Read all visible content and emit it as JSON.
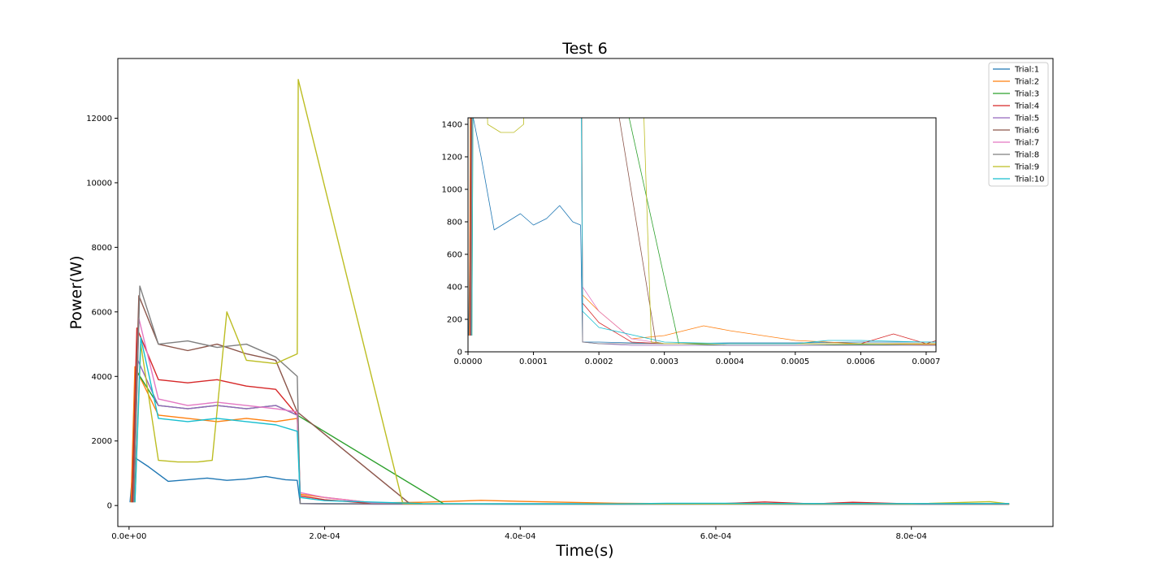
{
  "chart_data": {
    "type": "line",
    "title": "Test 6",
    "xlabel": "Time(s)",
    "ylabel": "Power(W)",
    "grid": false,
    "legend_position": "top-right",
    "xlim": [
      -1.15e-05,
      0.0009448
    ],
    "ylim": [
      -650,
      13850
    ],
    "x_ticks": [
      0,
      0.0002,
      0.0004,
      0.0006,
      0.0008
    ],
    "x_tick_labels": [
      "0.0e+00",
      "2.0e-04",
      "4.0e-04",
      "6.0e-04",
      "8.0e-04"
    ],
    "y_ticks": [
      0,
      2000,
      4000,
      6000,
      8000,
      10000,
      12000
    ],
    "y_tick_labels": [
      "0",
      "2000",
      "4000",
      "6000",
      "8000",
      "10000",
      "12000"
    ],
    "series": [
      {
        "name": "Trial:1",
        "color": "#1f77b4",
        "x": [
          1e-06,
          5e-06,
          2e-05,
          4e-05,
          6e-05,
          8e-05,
          0.0001,
          0.00012,
          0.00014,
          0.00016,
          0.000172,
          0.000175,
          0.0002,
          0.0003,
          0.0004,
          0.0005,
          0.0006,
          0.0007,
          0.0008,
          0.0009
        ],
        "y": [
          100,
          1500,
          1200,
          750,
          800,
          850,
          780,
          820,
          900,
          800,
          780,
          60,
          60,
          50,
          55,
          55,
          60,
          60,
          55,
          55
        ]
      },
      {
        "name": "Trial:2",
        "color": "#ff7f0e",
        "x": [
          2e-06,
          6e-06,
          3e-05,
          6e-05,
          9e-05,
          0.00012,
          0.00015,
          0.000172,
          0.000175,
          0.0002,
          0.00025,
          0.0003,
          0.00036,
          0.0004,
          0.0005,
          0.0006,
          0.0007,
          0.0008,
          0.0009
        ],
        "y": [
          100,
          4300,
          2800,
          2700,
          2600,
          2700,
          2600,
          2700,
          350,
          250,
          80,
          100,
          160,
          130,
          70,
          50,
          45,
          45,
          40
        ]
      },
      {
        "name": "Trial:3",
        "color": "#2ca02c",
        "x": [
          3e-06,
          7e-06,
          3e-05,
          6e-05,
          9e-05,
          0.00012,
          0.00015,
          0.000172,
          0.000322,
          0.0004,
          0.0005,
          0.0006,
          0.0007,
          0.0008,
          0.0009
        ],
        "y": [
          100,
          4200,
          3100,
          3000,
          3100,
          3000,
          3100,
          2800,
          50,
          40,
          40,
          45,
          40,
          40,
          40
        ]
      },
      {
        "name": "Trial:4",
        "color": "#d62728",
        "x": [
          3e-06,
          8e-06,
          3e-05,
          6e-05,
          9e-05,
          0.00012,
          0.00015,
          0.000172,
          0.000175,
          0.0002,
          0.00025,
          0.0003,
          0.0004,
          0.0005,
          0.0006,
          0.00065,
          0.0007,
          0.00074,
          0.0008,
          0.0009
        ],
        "y": [
          100,
          5500,
          3900,
          3800,
          3900,
          3700,
          3600,
          2800,
          300,
          180,
          60,
          50,
          50,
          50,
          50,
          110,
          50,
          100,
          50,
          50
        ]
      },
      {
        "name": "Trial:5",
        "color": "#9467bd",
        "x": [
          4e-06,
          9e-06,
          3e-05,
          6e-05,
          9e-05,
          0.00012,
          0.00015,
          0.000172,
          0.000175,
          0.0002,
          0.00025,
          0.0003,
          0.0004,
          0.0005,
          0.0006,
          0.0007,
          0.0008,
          0.0009
        ],
        "y": [
          100,
          4500,
          3100,
          3000,
          3100,
          3000,
          3100,
          2800,
          60,
          50,
          40,
          40,
          40,
          40,
          40,
          40,
          40,
          40
        ]
      },
      {
        "name": "Trial:6",
        "color": "#8c564b",
        "x": [
          4e-06,
          1e-05,
          3e-05,
          6e-05,
          9e-05,
          0.00012,
          0.00015,
          0.000172,
          0.000287,
          0.0003,
          0.0004,
          0.0005,
          0.0006,
          0.0007,
          0.0008,
          0.0009
        ],
        "y": [
          100,
          6500,
          5000,
          4800,
          5000,
          4700,
          4500,
          2900,
          60,
          50,
          50,
          50,
          50,
          50,
          50,
          50
        ]
      },
      {
        "name": "Trial:7",
        "color": "#e377c2",
        "x": [
          5e-06,
          1e-05,
          3e-05,
          6e-05,
          9e-05,
          0.00012,
          0.00015,
          0.000172,
          0.000175,
          0.0002,
          0.00025,
          0.0003,
          0.0004,
          0.0005,
          0.0006,
          0.0007,
          0.0008,
          0.0009
        ],
        "y": [
          100,
          5800,
          3300,
          3100,
          3200,
          3100,
          3000,
          2900,
          400,
          250,
          80,
          50,
          50,
          50,
          50,
          50,
          50,
          50
        ]
      },
      {
        "name": "Trial:8",
        "color": "#7f7f7f",
        "x": [
          5e-06,
          1.1e-05,
          3e-05,
          6e-05,
          9e-05,
          0.00012,
          0.00015,
          0.000172,
          0.000175,
          0.0002,
          0.0003,
          0.0004,
          0.0005,
          0.0006,
          0.0007,
          0.0008,
          0.0009
        ],
        "y": [
          100,
          6800,
          5000,
          5100,
          4900,
          5000,
          4600,
          4000,
          60,
          50,
          50,
          50,
          50,
          50,
          50,
          50,
          50
        ]
      },
      {
        "name": "Trial:9",
        "color": "#bcbd22",
        "x": [
          6e-06,
          1.2e-05,
          3e-05,
          5e-05,
          7e-05,
          8.5e-05,
          0.0001,
          0.00012,
          0.00015,
          0.000172,
          0.000173,
          0.00028,
          0.0003,
          0.0004,
          0.0005,
          0.0006,
          0.0007,
          0.0008,
          0.00088,
          0.0009
        ],
        "y": [
          100,
          5000,
          1400,
          1350,
          1350,
          1400,
          6000,
          4500,
          4400,
          4700,
          13200,
          60,
          50,
          50,
          50,
          50,
          50,
          50,
          120,
          50
        ]
      },
      {
        "name": "Trial:10",
        "color": "#17becf",
        "x": [
          6e-06,
          1.2e-05,
          3e-05,
          6e-05,
          9e-05,
          0.00012,
          0.00015,
          0.000172,
          0.000175,
          0.0002,
          0.0003,
          0.0004,
          0.0005,
          0.00055,
          0.0006,
          0.0007,
          0.0008,
          0.0009
        ],
        "y": [
          100,
          5200,
          2700,
          2600,
          2700,
          2600,
          2500,
          2300,
          250,
          150,
          60,
          50,
          50,
          70,
          70,
          60,
          60,
          60
        ]
      }
    ],
    "inset": {
      "xlim": [
        0,
        0.000715
      ],
      "ylim": [
        0,
        1440
      ],
      "x_ticks": [
        0,
        0.0001,
        0.0002,
        0.0003,
        0.0004,
        0.0005,
        0.0006,
        0.0007
      ],
      "x_tick_labels": [
        "0.0000",
        "0.0001",
        "0.0002",
        "0.0003",
        "0.0004",
        "0.0005",
        "0.0006",
        "0.0007"
      ],
      "y_ticks": [
        0,
        200,
        400,
        600,
        800,
        1000,
        1200,
        1400
      ],
      "y_tick_labels": [
        "0",
        "200",
        "400",
        "600",
        "800",
        "1000",
        "1200",
        "1400"
      ]
    }
  }
}
